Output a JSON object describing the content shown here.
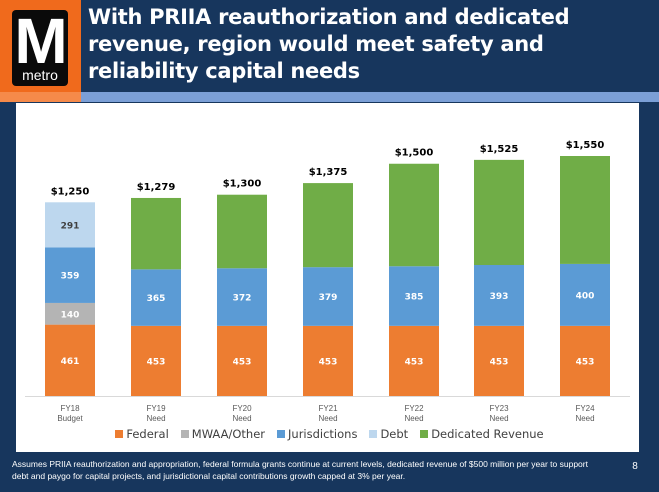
{
  "header": {
    "logo": {
      "mark": "M",
      "wordmark": "metro",
      "name": "metro-logo"
    },
    "title": "With PRIIA reauthorization and dedicated revenue, region would meet safety and reliability capital needs",
    "colors": {
      "background": "#17365d",
      "logo_band": "#f06a1c",
      "accent_band": "#7b9fd6"
    }
  },
  "chart_data": {
    "type": "bar",
    "stacked": true,
    "title": "",
    "xlabel": "",
    "ylabel": "",
    "ylim": [
      0,
      1600
    ],
    "grid": false,
    "legend_position": "bottom",
    "categories": [
      [
        "FY18",
        "Budget"
      ],
      [
        "FY19",
        "Need"
      ],
      [
        "FY20",
        "Need"
      ],
      [
        "FY21",
        "Need"
      ],
      [
        "FY22",
        "Need"
      ],
      [
        "FY23",
        "Need"
      ],
      [
        "FY24",
        "Need"
      ]
    ],
    "totals": [
      1250,
      1279,
      1300,
      1375,
      1500,
      1525,
      1550
    ],
    "total_labels": [
      "$1,250",
      "$1,279",
      "$1,300",
      "$1,375",
      "$1,500",
      "$1,525",
      "$1,550"
    ],
    "series": [
      {
        "name": "Federal",
        "color": "#ed7d31",
        "values": [
          461,
          453,
          453,
          453,
          453,
          453,
          453
        ],
        "labeled": [
          true,
          true,
          true,
          true,
          true,
          true,
          true
        ]
      },
      {
        "name": "MWAA/Other",
        "color": "#b4b4b4",
        "values": [
          140,
          0,
          0,
          0,
          0,
          0,
          0
        ],
        "labeled": [
          true,
          false,
          false,
          false,
          false,
          false,
          false
        ]
      },
      {
        "name": "Jurisdictions",
        "color": "#5b9bd5",
        "values": [
          359,
          365,
          372,
          379,
          385,
          393,
          400
        ],
        "labeled": [
          true,
          true,
          true,
          true,
          true,
          true,
          true
        ]
      },
      {
        "name": "Debt",
        "color": "#bdd7ee",
        "values": [
          291,
          0,
          0,
          0,
          0,
          0,
          0
        ],
        "labeled": [
          true,
          false,
          false,
          false,
          false,
          false,
          false
        ]
      },
      {
        "name": "Dedicated Revenue",
        "color": "#70ad47",
        "values": [
          0,
          461,
          475,
          543,
          662,
          679,
          697
        ],
        "labeled": [
          false,
          false,
          false,
          false,
          false,
          false,
          false
        ]
      }
    ]
  },
  "footer": {
    "note": "Assumes PRIIA reauthorization and appropriation, federal formula grants continue at current levels, dedicated revenue of $500 million per year to support debt and paygo for capital projects, and jurisdictional capital contributions growth capped at 3% per year.",
    "page_number": "8"
  }
}
